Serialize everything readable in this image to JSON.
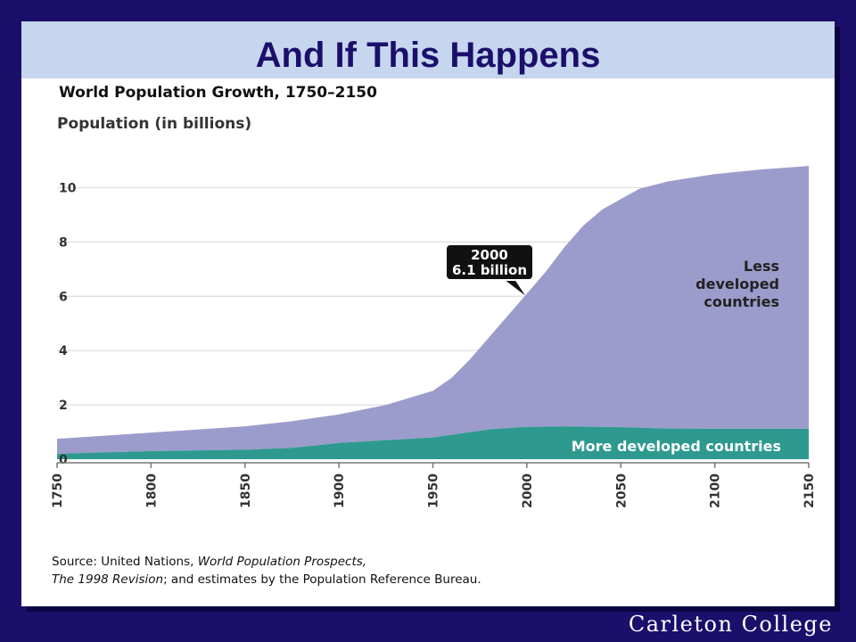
{
  "slide": {
    "title": "And If This Happens",
    "footer_brand": "Carleton College"
  },
  "colors": {
    "background": "#1b0f6b",
    "title_band": "#c7d6ef",
    "less_developed": "#9c9ccc",
    "more_developed": "#2e9a8f"
  },
  "source": {
    "line1_prefix": "Source: United Nations, ",
    "line1_italic": "World Population Prospects,",
    "line2_italic": "The 1998 Revision",
    "line2_rest": "; and estimates by the Population Reference Bureau."
  },
  "chart_data": {
    "type": "area",
    "stacked": true,
    "title": "World Population Growth, 1750–2150",
    "ylabel": "Population (in billions)",
    "xlabel": "",
    "xlim": [
      1750,
      2150
    ],
    "ylim": [
      0,
      11
    ],
    "x_ticks": [
      "1750",
      "1800",
      "1850",
      "1900",
      "1950",
      "2000",
      "2050",
      "2100",
      "2150"
    ],
    "y_ticks": [
      "0",
      "2",
      "4",
      "6",
      "8",
      "10"
    ],
    "grid": true,
    "x": [
      1750,
      1800,
      1850,
      1875,
      1900,
      1925,
      1950,
      1960,
      1970,
      1980,
      1990,
      2000,
      2010,
      2020,
      2030,
      2040,
      2050,
      2060,
      2075,
      2100,
      2125,
      2150
    ],
    "series": [
      {
        "name": "More developed countries",
        "values": [
          0.2,
          0.3,
          0.35,
          0.42,
          0.6,
          0.7,
          0.8,
          0.9,
          1.0,
          1.1,
          1.15,
          1.19,
          1.2,
          1.21,
          1.2,
          1.19,
          1.18,
          1.16,
          1.13,
          1.12,
          1.12,
          1.12
        ]
      },
      {
        "name": "Less developed countries",
        "values": [
          0.55,
          0.68,
          0.86,
          0.98,
          1.05,
          1.3,
          1.72,
          2.1,
          2.7,
          3.4,
          4.15,
          4.91,
          5.7,
          6.6,
          7.4,
          8.0,
          8.4,
          8.8,
          9.1,
          9.38,
          9.55,
          9.68
        ]
      }
    ],
    "series_labels": {
      "less_developed": [
        "Less",
        "developed",
        "countries"
      ],
      "more_developed": "More developed countries"
    },
    "annotations": [
      {
        "x": 2000,
        "y": 6.1,
        "line1": "2000",
        "line2": "6.1 billion"
      }
    ]
  }
}
